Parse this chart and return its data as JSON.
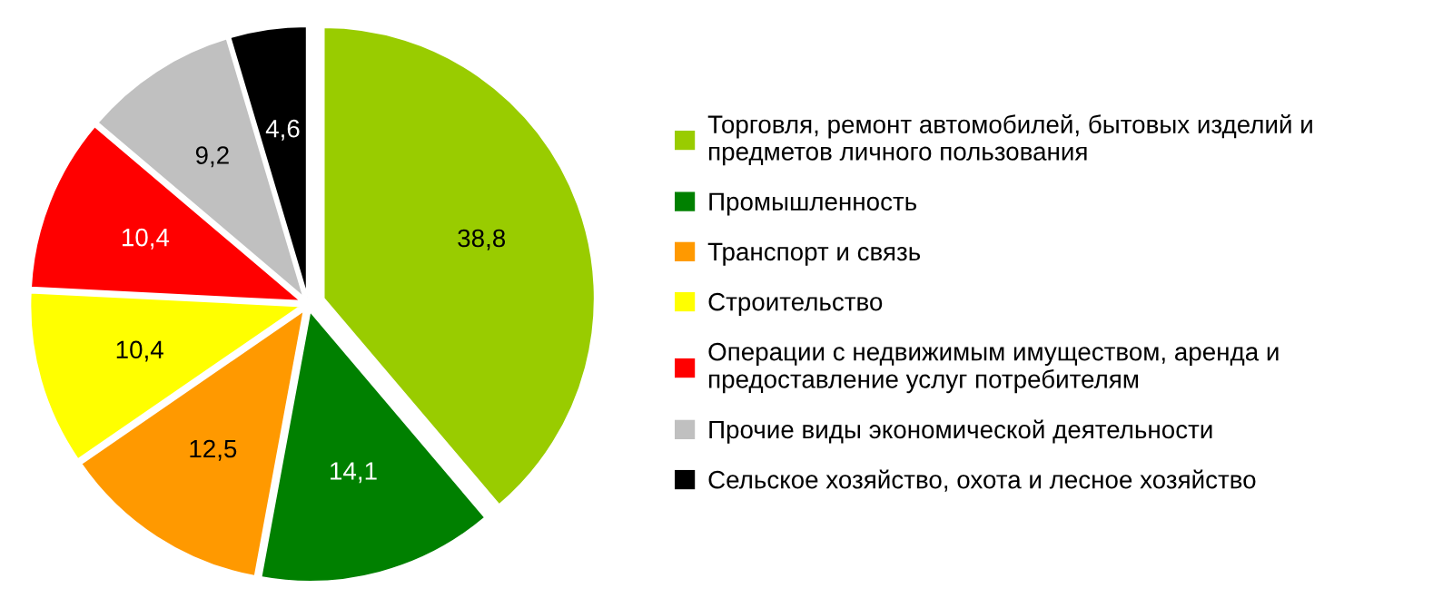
{
  "chart_data": {
    "type": "pie",
    "categories": [
      "Торговля, ремонт автомобилей, бытовых изделий и предметов личного пользования",
      "Промышленность",
      "Транспорт и связь",
      "Строительство",
      "Операции с недвижимым имуществом, аренда и предоставление услуг потребителям",
      "Прочие виды экономической деятельности",
      "Сельское хозяйство, охота и лесное хозяйство"
    ],
    "values": [
      38.8,
      14.1,
      12.5,
      10.4,
      10.4,
      9.2,
      4.6
    ],
    "colors": [
      "#99cc00",
      "#008000",
      "#ff9900",
      "#ffff00",
      "#ff0000",
      "#c0c0c0",
      "#000000"
    ],
    "value_labels": [
      "38,8",
      "14,1",
      "12,5",
      "10,4",
      "10,4",
      "9,2",
      "4,6"
    ],
    "legend": "right"
  }
}
